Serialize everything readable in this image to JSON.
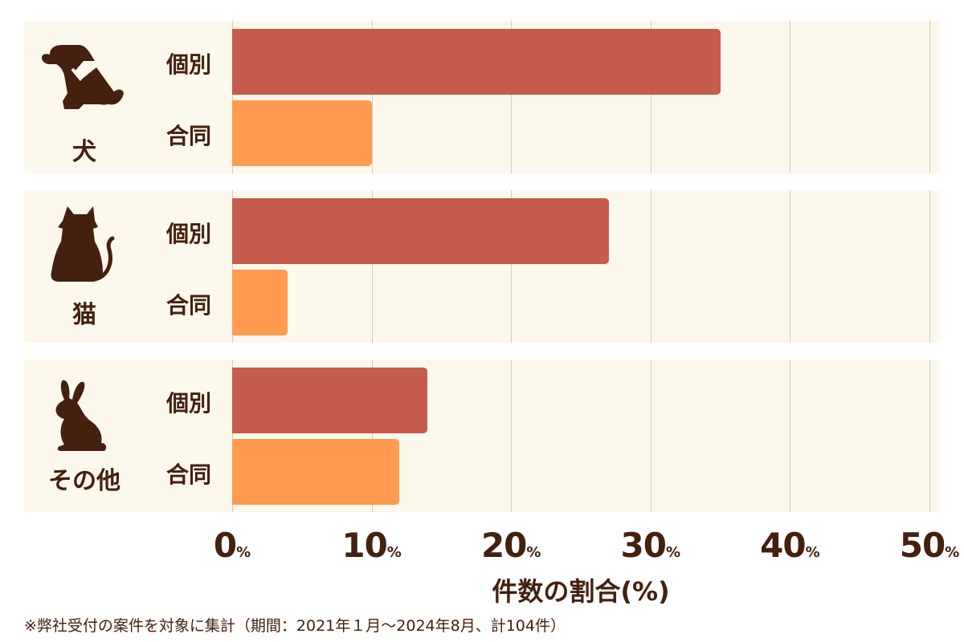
{
  "chart_data": {
    "type": "bar",
    "orientation": "horizontal",
    "title": "",
    "xlabel": "件数の割合(%)",
    "ylabel": "",
    "xlim": [
      0,
      50
    ],
    "x_ticks": [
      "0",
      "10",
      "20",
      "30",
      "40",
      "50"
    ],
    "x_tick_unit": "%",
    "grid": true,
    "groups": [
      "犬",
      "猫",
      "その他"
    ],
    "series": [
      {
        "name": "個別",
        "color": "#c65c4c",
        "values": [
          35,
          27,
          14
        ]
      },
      {
        "name": "合同",
        "color": "#fe9b50",
        "values": [
          10,
          4,
          12
        ]
      }
    ]
  },
  "groups": [
    {
      "label": "犬",
      "icon": "dog-icon",
      "ind_label": "個別",
      "joint_label": "合同",
      "ind_value": 35,
      "joint_value": 10
    },
    {
      "label": "猫",
      "icon": "cat-icon",
      "ind_label": "個別",
      "joint_label": "合同",
      "ind_value": 27,
      "joint_value": 4
    },
    {
      "label": "その他",
      "icon": "rabbit-icon",
      "ind_label": "個別",
      "joint_label": "合同",
      "ind_value": 14,
      "joint_value": 12
    }
  ],
  "axis": {
    "ticks": [
      {
        "num": "0",
        "unit": "%"
      },
      {
        "num": "10",
        "unit": "%"
      },
      {
        "num": "20",
        "unit": "%"
      },
      {
        "num": "30",
        "unit": "%"
      },
      {
        "num": "40",
        "unit": "%"
      },
      {
        "num": "50",
        "unit": "%"
      }
    ],
    "title": "件数の割合(%)"
  },
  "colors": {
    "individual": "#c65c4c",
    "joint": "#fe9b50",
    "panel_bg": "#fdf8ec",
    "text": "#44200f"
  },
  "footnote": "※弊社受付の案件を対象に集計（期間：2021年１月～2024年8月、計104件）"
}
